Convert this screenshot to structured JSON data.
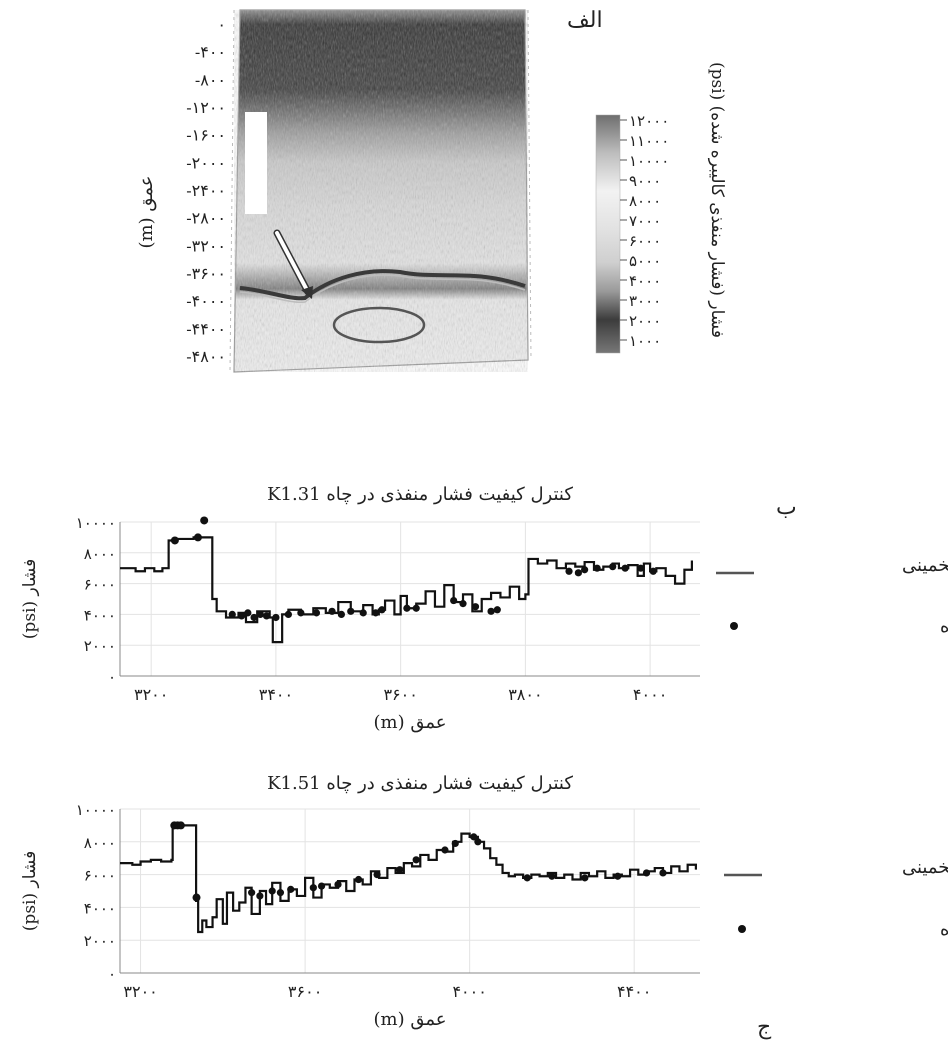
{
  "panels": {
    "a_label": "الف",
    "b_label": "ب",
    "c_label": "ج"
  },
  "colors": {
    "line": "#111111",
    "marker": "#111111",
    "legend_line": "#555555",
    "grid": "#e3e3e3",
    "axis": "#888888",
    "ellipse": "#555555",
    "arrow": "#333333"
  },
  "chart_data": [
    {
      "type": "heatmap",
      "ylabel": "عمق (m)",
      "y_ticks": [
        "۰",
        "-۴۰۰",
        "-۸۰۰",
        "-۱۲۰۰",
        "-۱۶۰۰",
        "-۲۰۰۰",
        "-۲۴۰۰",
        "-۲۸۰۰",
        "-۳۲۰۰",
        "-۳۶۰۰",
        "-۴۰۰۰",
        "-۴۴۰۰",
        "-۴۸۰۰"
      ],
      "y_values": [
        0,
        -400,
        -800,
        -1200,
        -1600,
        -2000,
        -2400,
        -2800,
        -3200,
        -3600,
        -4000,
        -4400,
        -4800
      ],
      "ylim": [
        -4800,
        0
      ],
      "colorbar": {
        "label": "فشار (فشار منفذی کالیبره شده) (psi)",
        "ticks": [
          "۱۲۰۰۰",
          "۱۱۰۰۰",
          "۱۰۰۰۰",
          "۹۰۰۰",
          "۸۰۰۰",
          "۷۰۰۰",
          "۶۰۰۰",
          "۵۰۰۰",
          "۴۰۰۰",
          "۳۰۰۰",
          "۲۰۰۰",
          "۱۰۰۰"
        ],
        "range": [
          1000,
          12000
        ]
      }
    },
    {
      "type": "line",
      "title": "کنترل کیفیت فشار منفذی در چاه K1.31",
      "xlabel": "عمق (m)",
      "ylabel": "فشار (psi)",
      "xlim": [
        3150,
        4080
      ],
      "ylim": [
        0,
        10000
      ],
      "x_ticks": [
        "۳۲۰۰",
        "۳۴۰۰",
        "۳۶۰۰",
        "۳۸۰۰",
        "۴۰۰۰"
      ],
      "x_tick_values": [
        3200,
        3400,
        3600,
        3800,
        4000
      ],
      "y_ticks": [
        "۰",
        "۲۰۰۰",
        "۴۰۰۰",
        "۶۰۰۰",
        "۸۰۰۰",
        "۱۰۰۰۰"
      ],
      "y_tick_values": [
        0,
        2000,
        4000,
        6000,
        8000,
        10000
      ],
      "legend": [
        "فشار تخمینی",
        "فشار اندازه‌گیری شده"
      ],
      "series": [
        {
          "x": [
            3150,
            3175,
            3190,
            3205,
            3218,
            3228,
            3242,
            3268,
            3296,
            3298,
            3305,
            3320,
            3340,
            3352,
            3370,
            3390,
            3395,
            3410,
            3420,
            3440,
            3460,
            3480,
            3500,
            3520,
            3540,
            3555,
            3565,
            3575,
            3590,
            3600,
            3610,
            3625,
            3640,
            3655,
            3670,
            3685,
            3700,
            3715,
            3730,
            3745,
            3760,
            3775,
            3790,
            3800,
            3805,
            3820,
            3835,
            3850,
            3865,
            3880,
            3895,
            3910,
            3925,
            3940,
            3950,
            3965,
            3980,
            3990,
            4000,
            4010,
            4025,
            4040,
            4055,
            4067
          ],
          "y": [
            7000,
            6800,
            7000,
            6800,
            7000,
            8800,
            8900,
            9000,
            9000,
            5000,
            4200,
            3800,
            4100,
            3500,
            4200,
            3800,
            2200,
            4000,
            4300,
            4000,
            4400,
            4100,
            4800,
            4200,
            4600,
            4000,
            4300,
            4900,
            4000,
            5200,
            4400,
            4700,
            5500,
            4500,
            5900,
            4800,
            5300,
            4200,
            5000,
            5400,
            5100,
            5800,
            5000,
            5300,
            7600,
            7300,
            7500,
            7000,
            7300,
            7100,
            7400,
            6900,
            7100,
            7300,
            7000,
            7200,
            6500,
            7300,
            6800,
            7000,
            6500,
            6000,
            6900,
            7500
          ]
        },
        {
          "x": [
            3238,
            3275,
            3285
          ],
          "y": [
            8800,
            9000,
            10100
          ],
          "markers": [
            [
              3330,
              4000
            ],
            [
              3345,
              3900
            ],
            [
              3355,
              4100
            ],
            [
              3365,
              3800
            ],
            [
              3375,
              4000
            ],
            [
              3385,
              3900
            ],
            [
              3400,
              3800
            ],
            [
              3420,
              4000
            ],
            [
              3440,
              4100
            ],
            [
              3465,
              4100
            ],
            [
              3490,
              4200
            ],
            [
              3505,
              4000
            ],
            [
              3520,
              4200
            ],
            [
              3540,
              4100
            ],
            [
              3560,
              4100
            ],
            [
              3570,
              4300
            ],
            [
              3610,
              4400
            ],
            [
              3625,
              4400
            ],
            [
              3685,
              4900
            ],
            [
              3700,
              4700
            ],
            [
              3720,
              4500
            ],
            [
              3745,
              4200
            ],
            [
              3755,
              4300
            ],
            [
              3870,
              6800
            ],
            [
              3885,
              6700
            ],
            [
              3895,
              6900
            ],
            [
              3915,
              7000
            ],
            [
              3940,
              7100
            ],
            [
              3960,
              7000
            ],
            [
              3985,
              7000
            ],
            [
              4005,
              6800
            ]
          ]
        }
      ]
    },
    {
      "type": "line",
      "title": "کنترل کیفیت فشار منفذی در چاه K1.51",
      "xlabel": "عمق (m)",
      "ylabel": "فشار (psi)",
      "xlim": [
        3150,
        4560
      ],
      "ylim": [
        0,
        10000
      ],
      "x_ticks": [
        "۳۲۰۰",
        "۳۶۰۰",
        "۴۰۰۰",
        "۴۴۰۰"
      ],
      "x_tick_values": [
        3200,
        3600,
        4000,
        4400
      ],
      "y_ticks": [
        "۰",
        "۲۰۰۰",
        "۴۰۰۰",
        "۶۰۰۰",
        "۸۰۰۰",
        "۱۰۰۰۰"
      ],
      "y_tick_values": [
        0,
        2000,
        4000,
        6000,
        8000,
        10000
      ],
      "legend": [
        "فشار تخمینی",
        "فشار اندازه‌گیری شده"
      ],
      "series": [
        {
          "x": [
            3150,
            3180,
            3200,
            3225,
            3250,
            3275,
            3278,
            3300,
            3330,
            3335,
            3340,
            3350,
            3360,
            3375,
            3385,
            3400,
            3410,
            3425,
            3440,
            3455,
            3470,
            3490,
            3505,
            3520,
            3540,
            3560,
            3580,
            3600,
            3620,
            3640,
            3660,
            3680,
            3700,
            3720,
            3740,
            3760,
            3780,
            3800,
            3820,
            3840,
            3860,
            3880,
            3900,
            3920,
            3940,
            3960,
            3980,
            4000,
            4020,
            4035,
            4050,
            4065,
            4080,
            4095,
            4110,
            4130,
            4150,
            4170,
            4190,
            4210,
            4230,
            4250,
            4270,
            4290,
            4310,
            4330,
            4350,
            4370,
            4390,
            4410,
            4430,
            4450,
            4470,
            4490,
            4510,
            4530,
            4550
          ],
          "y": [
            6700,
            6600,
            6800,
            6900,
            6800,
            6900,
            9000,
            9000,
            9000,
            4400,
            2500,
            3200,
            2800,
            3400,
            4500,
            3000,
            4900,
            3800,
            4300,
            5200,
            3600,
            5000,
            4200,
            5500,
            4400,
            5100,
            4700,
            5800,
            4600,
            5400,
            5200,
            5600,
            5000,
            5700,
            5400,
            6200,
            5800,
            6400,
            6100,
            6700,
            6500,
            7200,
            6900,
            7500,
            7400,
            8000,
            8500,
            8300,
            8000,
            7600,
            7000,
            6600,
            6100,
            5900,
            6000,
            5800,
            6000,
            5900,
            6100,
            5800,
            6000,
            5700,
            6100,
            5900,
            6200,
            5800,
            6000,
            5900,
            6300,
            6000,
            6200,
            6400,
            6100,
            6500,
            6200,
            6600,
            6300
          ]
        },
        {
          "x": [
            3282,
            3290,
            3298,
            3336
          ],
          "y": [
            9000,
            9000,
            9000,
            4600
          ],
          "markers": [
            [
              3470,
              4900
            ],
            [
              3490,
              4700
            ],
            [
              3520,
              5000
            ],
            [
              3540,
              4900
            ],
            [
              3565,
              5100
            ],
            [
              3620,
              5200
            ],
            [
              3640,
              5300
            ],
            [
              3680,
              5400
            ],
            [
              3730,
              5700
            ],
            [
              3775,
              6000
            ],
            [
              3830,
              6300
            ],
            [
              3870,
              6900
            ],
            [
              3940,
              7500
            ],
            [
              3965,
              7900
            ],
            [
              4010,
              8300
            ],
            [
              4020,
              8000
            ],
            [
              4140,
              5800
            ],
            [
              4200,
              5900
            ],
            [
              4280,
              5800
            ],
            [
              4360,
              5900
            ],
            [
              4430,
              6100
            ],
            [
              4470,
              6100
            ]
          ]
        }
      ]
    }
  ]
}
